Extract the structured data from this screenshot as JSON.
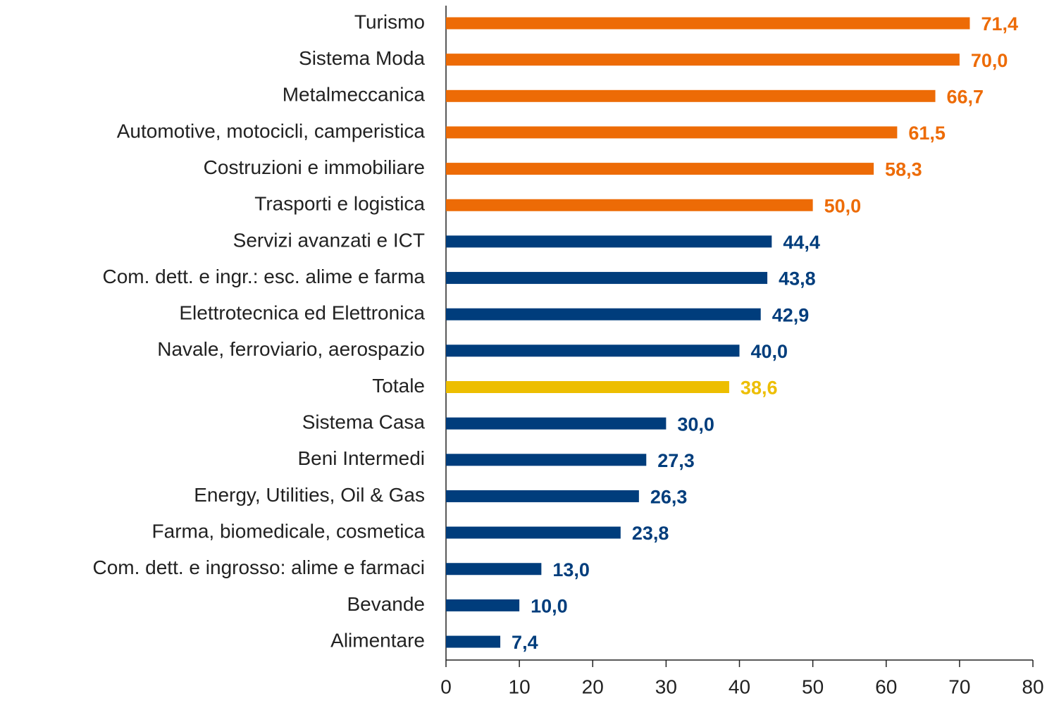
{
  "chart_data": {
    "type": "bar",
    "orientation": "horizontal",
    "categories": [
      "Turismo",
      "Sistema Moda",
      "Metalmeccanica",
      "Automotive, motocicli, camperistica",
      "Costruzioni e immobiliare",
      "Trasporti e logistica",
      "Servizi avanzati e ICT",
      "Com. dett. e ingr.: esc. alime e farma",
      "Elettrotecnica ed Elettronica",
      "Navale, ferroviario, aerospazio",
      "Totale",
      "Sistema Casa",
      "Beni Intermedi",
      "Energy, Utilities, Oil & Gas",
      "Farma, biomedicale, cosmetica",
      "Com. dett. e ingrosso: alime e farmaci",
      "Bevande",
      "Alimentare"
    ],
    "values": [
      71.4,
      70.0,
      66.7,
      61.5,
      58.3,
      50.0,
      44.4,
      43.8,
      42.9,
      40.0,
      38.6,
      30.0,
      27.3,
      26.3,
      23.8,
      13.0,
      10.0,
      7.4
    ],
    "value_labels": [
      "71,4",
      "70,0",
      "66,7",
      "61,5",
      "58,3",
      "50,0",
      "44,4",
      "43,8",
      "42,9",
      "40,0",
      "38,6",
      "30,0",
      "27,3",
      "26,3",
      "23,8",
      "13,0",
      "10,0",
      "7,4"
    ],
    "colors": [
      "#ED6B06",
      "#ED6B06",
      "#ED6B06",
      "#ED6B06",
      "#ED6B06",
      "#ED6B06",
      "#003D7C",
      "#003D7C",
      "#003D7C",
      "#003D7C",
      "#EDBE00",
      "#003D7C",
      "#003D7C",
      "#003D7C",
      "#003D7C",
      "#003D7C",
      "#003D7C",
      "#003D7C"
    ],
    "xlim": [
      0,
      80
    ],
    "xticks": [
      0,
      10,
      20,
      30,
      40,
      50,
      60,
      70,
      80
    ]
  }
}
